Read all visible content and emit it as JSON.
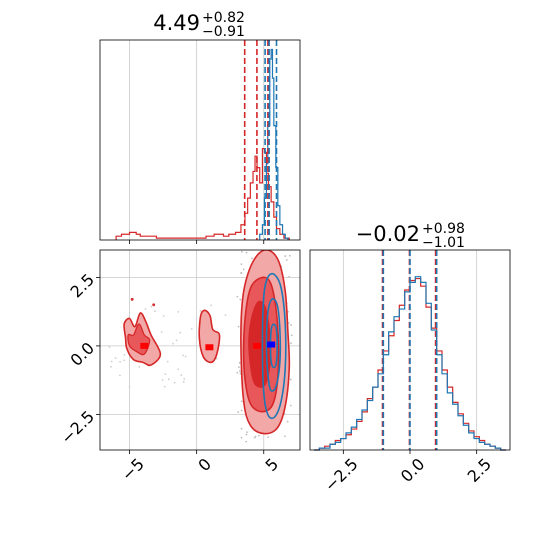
{
  "colors": {
    "red": "#d62728",
    "blue": "#1f77b4",
    "red_light": "#f3a8a8",
    "red_mid": "#e8585a",
    "grid": "#c9c9c9"
  },
  "chart_data": [
    {
      "id": "hist_x",
      "type": "histogram",
      "title_main": "4.49",
      "title_plus": "+0.82",
      "title_minus": "−0.91",
      "xlim": [
        -7.2,
        7.7
      ],
      "xticks": [
        -5,
        0,
        5
      ],
      "quantiles_red": [
        3.58,
        4.49,
        5.31
      ],
      "quantiles_blue": [
        5.1,
        5.4,
        5.95
      ],
      "grid": true,
      "series": [
        {
          "color_key": "red",
          "bins": [
            [
              -6.0,
              0.02
            ],
            [
              -5.6,
              0.03
            ],
            [
              -5.0,
              0.04
            ],
            [
              -4.5,
              0.03
            ],
            [
              -4.2,
              0.02
            ],
            [
              -3.0,
              0.01
            ],
            [
              -0.2,
              0.01
            ],
            [
              0.7,
              0.02
            ],
            [
              1.3,
              0.03
            ],
            [
              2.0,
              0.02
            ],
            [
              2.4,
              0.03
            ],
            [
              2.9,
              0.04
            ],
            [
              3.3,
              0.08
            ],
            [
              3.6,
              0.14
            ],
            [
              3.8,
              0.22
            ],
            [
              4.0,
              0.3
            ],
            [
              4.2,
              0.36
            ],
            [
              4.35,
              0.44
            ],
            [
              4.5,
              0.38
            ],
            [
              4.7,
              0.3
            ],
            [
              4.9,
              0.48
            ],
            [
              5.05,
              0.46
            ],
            [
              5.2,
              0.35
            ],
            [
              5.35,
              0.28
            ],
            [
              5.55,
              0.2
            ],
            [
              5.75,
              0.12
            ],
            [
              5.95,
              0.06
            ],
            [
              6.2,
              0.03
            ],
            [
              6.5,
              0.01
            ]
          ]
        },
        {
          "color_key": "blue",
          "bins": [
            [
              4.7,
              0.03
            ],
            [
              4.9,
              0.08
            ],
            [
              5.05,
              0.22
            ],
            [
              5.2,
              0.4
            ],
            [
              5.3,
              0.6
            ],
            [
              5.45,
              0.95
            ],
            [
              5.55,
              1.0
            ],
            [
              5.65,
              0.85
            ],
            [
              5.75,
              0.6
            ],
            [
              5.9,
              0.38
            ],
            [
              6.05,
              0.18
            ],
            [
              6.2,
              0.08
            ],
            [
              6.4,
              0.03
            ],
            [
              6.6,
              0.01
            ]
          ]
        }
      ]
    },
    {
      "id": "hist_y",
      "type": "histogram",
      "title_main": "−0.02",
      "title_plus": "+0.98",
      "title_minus": "−1.01",
      "xlim": [
        -3.75,
        3.75
      ],
      "xticks": [
        -2.5,
        0.0,
        2.5
      ],
      "xtick_labels": [
        "−2.5",
        "0.0",
        "2.5"
      ],
      "quantiles_red": [
        -1.03,
        -0.02,
        0.96
      ],
      "quantiles_blue": [
        -1.0,
        0.0,
        1.0
      ],
      "grid": true,
      "series": [
        {
          "color_key": "red",
          "bins": [
            [
              -3.6,
              0.0
            ],
            [
              -3.4,
              0.01
            ],
            [
              -3.2,
              0.02
            ],
            [
              -3.0,
              0.03
            ],
            [
              -2.8,
              0.05
            ],
            [
              -2.6,
              0.06
            ],
            [
              -2.4,
              0.08
            ],
            [
              -2.2,
              0.11
            ],
            [
              -2.0,
              0.15
            ],
            [
              -1.8,
              0.2
            ],
            [
              -1.6,
              0.27
            ],
            [
              -1.4,
              0.33
            ],
            [
              -1.2,
              0.42
            ],
            [
              -1.0,
              0.52
            ],
            [
              -0.8,
              0.6
            ],
            [
              -0.6,
              0.68
            ],
            [
              -0.4,
              0.76
            ],
            [
              -0.2,
              0.84
            ],
            [
              0.0,
              0.89
            ],
            [
              0.2,
              0.9
            ],
            [
              0.4,
              0.86
            ],
            [
              0.6,
              0.75
            ],
            [
              0.8,
              0.64
            ],
            [
              1.0,
              0.52
            ],
            [
              1.2,
              0.42
            ],
            [
              1.4,
              0.33
            ],
            [
              1.6,
              0.25
            ],
            [
              1.8,
              0.19
            ],
            [
              2.0,
              0.14
            ],
            [
              2.2,
              0.1
            ],
            [
              2.4,
              0.07
            ],
            [
              2.6,
              0.05
            ],
            [
              2.8,
              0.03
            ],
            [
              3.0,
              0.02
            ],
            [
              3.2,
              0.01
            ],
            [
              3.4,
              0.0
            ]
          ]
        },
        {
          "color_key": "blue",
          "bins": [
            [
              -3.6,
              0.0
            ],
            [
              -3.4,
              0.01
            ],
            [
              -3.2,
              0.01
            ],
            [
              -3.0,
              0.03
            ],
            [
              -2.8,
              0.04
            ],
            [
              -2.6,
              0.06
            ],
            [
              -2.4,
              0.09
            ],
            [
              -2.2,
              0.12
            ],
            [
              -2.0,
              0.16
            ],
            [
              -1.8,
              0.21
            ],
            [
              -1.6,
              0.26
            ],
            [
              -1.4,
              0.33
            ],
            [
              -1.2,
              0.4
            ],
            [
              -1.0,
              0.5
            ],
            [
              -0.8,
              0.62
            ],
            [
              -0.6,
              0.7
            ],
            [
              -0.4,
              0.74
            ],
            [
              -0.2,
              0.83
            ],
            [
              0.0,
              0.88
            ],
            [
              0.2,
              0.91
            ],
            [
              0.4,
              0.88
            ],
            [
              0.6,
              0.77
            ],
            [
              0.8,
              0.63
            ],
            [
              1.0,
              0.5
            ],
            [
              1.2,
              0.4
            ],
            [
              1.4,
              0.3
            ],
            [
              1.6,
              0.24
            ],
            [
              1.8,
              0.18
            ],
            [
              2.0,
              0.13
            ],
            [
              2.2,
              0.09
            ],
            [
              2.4,
              0.06
            ],
            [
              2.6,
              0.04
            ],
            [
              2.8,
              0.03
            ],
            [
              3.0,
              0.02
            ],
            [
              3.2,
              0.01
            ],
            [
              3.4,
              0.0
            ]
          ]
        }
      ]
    },
    {
      "id": "corner_2d",
      "type": "contour",
      "xlim": [
        -7.2,
        7.7
      ],
      "ylim": [
        -3.8,
        3.5
      ],
      "xticks": [
        -5,
        0,
        5
      ],
      "xtick_labels": [
        "−5",
        "0",
        "5"
      ],
      "yticks": [
        -2.5,
        0.0,
        2.5
      ],
      "ytick_labels": [
        "−2.5",
        "0.0",
        "2.5"
      ],
      "grid": true,
      "red_outer": [
        [
          3.3,
          0.0
        ],
        [
          3.4,
          1.6
        ],
        [
          3.8,
          2.6
        ],
        [
          4.5,
          3.3
        ],
        [
          5.3,
          3.5
        ],
        [
          6.1,
          3.1
        ],
        [
          6.6,
          2.0
        ],
        [
          6.8,
          0.5
        ],
        [
          6.9,
          -0.8
        ],
        [
          6.6,
          -2.2
        ],
        [
          6.0,
          -3.0
        ],
        [
          5.0,
          -3.2
        ],
        [
          4.0,
          -2.9
        ],
        [
          3.5,
          -2.0
        ]
      ],
      "red_middle": [
        [
          3.5,
          0.0
        ],
        [
          3.7,
          1.4
        ],
        [
          4.1,
          2.2
        ],
        [
          4.9,
          2.5
        ],
        [
          5.5,
          2.3
        ],
        [
          5.9,
          1.4
        ],
        [
          6.1,
          0.0
        ],
        [
          6.0,
          -1.4
        ],
        [
          5.6,
          -2.2
        ],
        [
          4.8,
          -2.4
        ],
        [
          4.0,
          -2.1
        ],
        [
          3.6,
          -1.2
        ]
      ],
      "red_inner": [
        [
          3.9,
          0.0
        ],
        [
          4.1,
          1.0
        ],
        [
          4.6,
          1.6
        ],
        [
          5.1,
          1.4
        ],
        [
          5.4,
          0.6
        ],
        [
          5.5,
          -0.4
        ],
        [
          5.2,
          -1.3
        ],
        [
          4.7,
          -1.5
        ],
        [
          4.2,
          -1.2
        ]
      ],
      "red_cluster_left": [
        [
          -5.3,
          0.3
        ],
        [
          -5.4,
          0.8
        ],
        [
          -5.0,
          1.0
        ],
        [
          -4.6,
          0.7
        ],
        [
          -4.2,
          1.2
        ],
        [
          -3.8,
          0.9
        ],
        [
          -3.4,
          0.4
        ],
        [
          -2.7,
          -0.3
        ],
        [
          -3.4,
          -0.7
        ],
        [
          -4.0,
          -0.6
        ],
        [
          -4.7,
          -0.5
        ],
        [
          -5.2,
          -0.1
        ]
      ],
      "red_cluster_left_inner": [
        [
          -5.1,
          0.4
        ],
        [
          -4.7,
          0.4
        ],
        [
          -4.3,
          0.8
        ],
        [
          -3.9,
          0.4
        ],
        [
          -3.5,
          0.2
        ],
        [
          -3.9,
          -0.3
        ],
        [
          -4.5,
          -0.2
        ],
        [
          -5.0,
          0.0
        ]
      ],
      "red_cluster_mid": [
        [
          0.3,
          1.1
        ],
        [
          0.6,
          1.3
        ],
        [
          1.0,
          1.1
        ],
        [
          1.2,
          0.6
        ],
        [
          1.7,
          0.4
        ],
        [
          1.5,
          -0.3
        ],
        [
          1.1,
          -0.6
        ],
        [
          0.5,
          -0.4
        ],
        [
          0.2,
          0.3
        ]
      ],
      "blue_outer": [
        [
          4.9,
          0.0
        ],
        [
          5.0,
          1.8
        ],
        [
          5.3,
          2.5
        ],
        [
          5.8,
          2.6
        ],
        [
          6.3,
          2.1
        ],
        [
          6.6,
          0.8
        ],
        [
          6.6,
          -0.8
        ],
        [
          6.3,
          -2.0
        ],
        [
          5.8,
          -2.6
        ],
        [
          5.3,
          -2.5
        ],
        [
          5.0,
          -1.7
        ]
      ],
      "blue_middle": [
        [
          5.2,
          0.0
        ],
        [
          5.3,
          1.2
        ],
        [
          5.6,
          1.7
        ],
        [
          6.0,
          1.5
        ],
        [
          6.2,
          0.6
        ],
        [
          6.2,
          -0.6
        ],
        [
          5.9,
          -1.5
        ],
        [
          5.5,
          -1.6
        ],
        [
          5.3,
          -1.0
        ]
      ],
      "blue_inner": [
        [
          5.5,
          0.0
        ],
        [
          5.6,
          0.7
        ],
        [
          5.9,
          0.7
        ],
        [
          6.0,
          0.0
        ],
        [
          5.9,
          -0.7
        ],
        [
          5.6,
          -0.7
        ]
      ],
      "peaks_red": [
        [
          -3.9,
          0.0
        ],
        [
          0.95,
          -0.05
        ],
        [
          4.5,
          0.0
        ]
      ],
      "peak_blue": [
        5.55,
        0.05
      ],
      "scatter_red": [
        [
          -4.8,
          1.7
        ],
        [
          -3.2,
          1.5
        ]
      ]
    }
  ]
}
